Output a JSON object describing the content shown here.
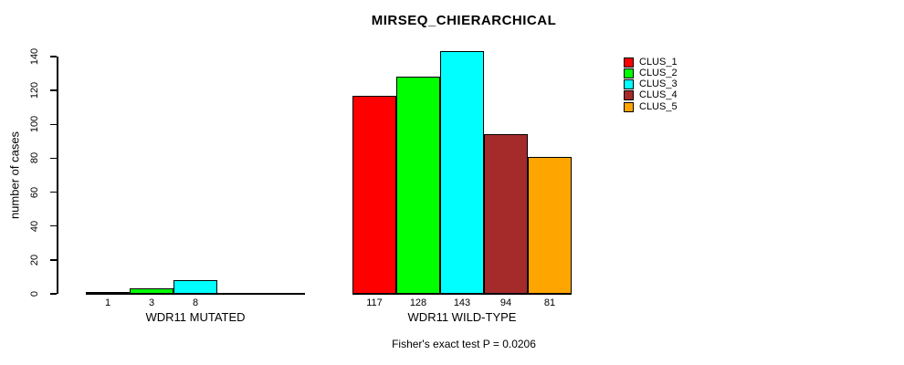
{
  "title": "MIRSEQ_CHIERARCHICAL",
  "ylabel": "number of cases",
  "footer": "Fisher's exact test P = 0.0206",
  "chart_data": {
    "type": "bar",
    "title": "MIRSEQ_CHIERARCHICAL",
    "xlabel": "",
    "ylabel": "number of cases",
    "ylim": [
      0,
      140
    ],
    "yticks": [
      0,
      20,
      40,
      60,
      80,
      100,
      120,
      140
    ],
    "grid": false,
    "legend_position": "right",
    "annotation": "Fisher's exact test P = 0.0206",
    "series": [
      {
        "name": "CLUS_1",
        "color": "#FF0000",
        "values": [
          1,
          117
        ]
      },
      {
        "name": "CLUS_2",
        "color": "#00FF00",
        "values": [
          3,
          128
        ]
      },
      {
        "name": "CLUS_3",
        "color": "#00FFFF",
        "values": [
          8,
          143
        ]
      },
      {
        "name": "CLUS_4",
        "color": "#A52A2A",
        "values": [
          0,
          94
        ]
      },
      {
        "name": "CLUS_5",
        "color": "#FFA500",
        "values": [
          0,
          81
        ]
      }
    ],
    "groups": [
      {
        "label": "WDR11 MUTATED",
        "values": [
          1,
          3,
          8,
          0,
          0
        ],
        "bar_labels": [
          "1",
          "3",
          "8",
          "",
          ""
        ]
      },
      {
        "label": "WDR11 WILD-TYPE",
        "values": [
          117,
          128,
          143,
          94,
          81
        ],
        "bar_labels": [
          "117",
          "128",
          "143",
          "94",
          "81"
        ]
      }
    ]
  }
}
